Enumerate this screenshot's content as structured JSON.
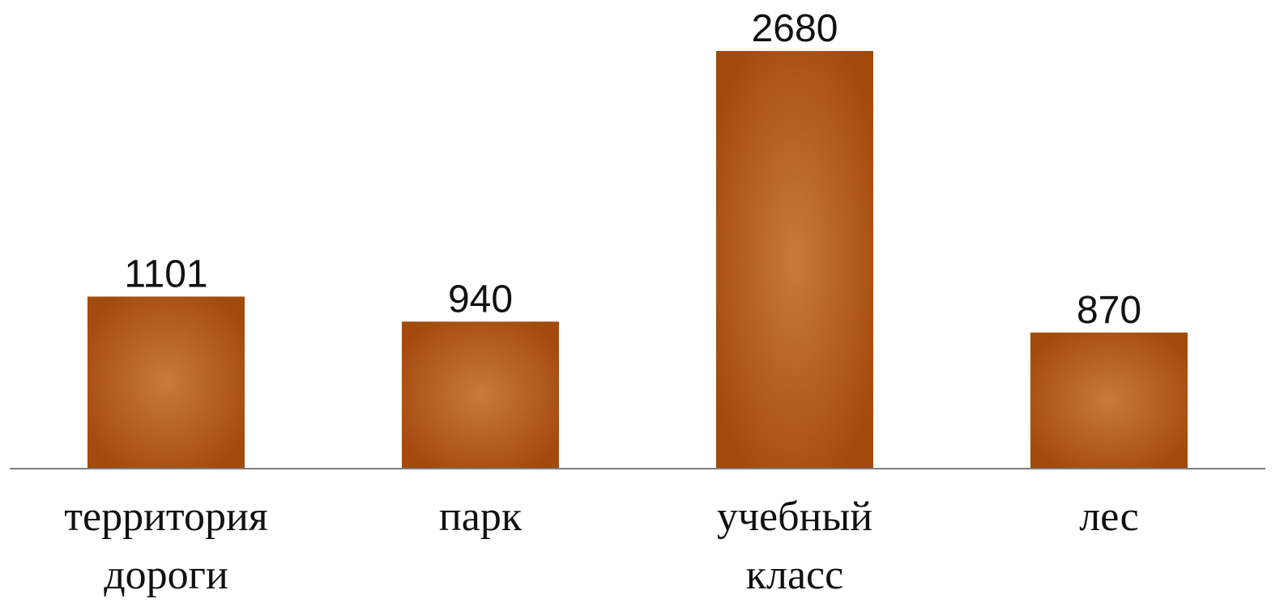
{
  "chart_data": {
    "type": "bar",
    "categories": [
      [
        "территория",
        "дороги"
      ],
      [
        "парк"
      ],
      [
        "учебный",
        "класс"
      ],
      [
        "лес"
      ]
    ],
    "values": [
      1101,
      940,
      2680,
      870
    ],
    "data_labels": [
      "1101",
      "940",
      "2680",
      "870"
    ],
    "title": "",
    "xlabel": "",
    "ylabel": "",
    "ylim": [
      0,
      2680
    ],
    "grid": false,
    "legend": "none",
    "colors": {
      "bar_center": "#c97a3c",
      "bar_edge": "#a34a0d",
      "axis": "#7f7f7f"
    }
  }
}
